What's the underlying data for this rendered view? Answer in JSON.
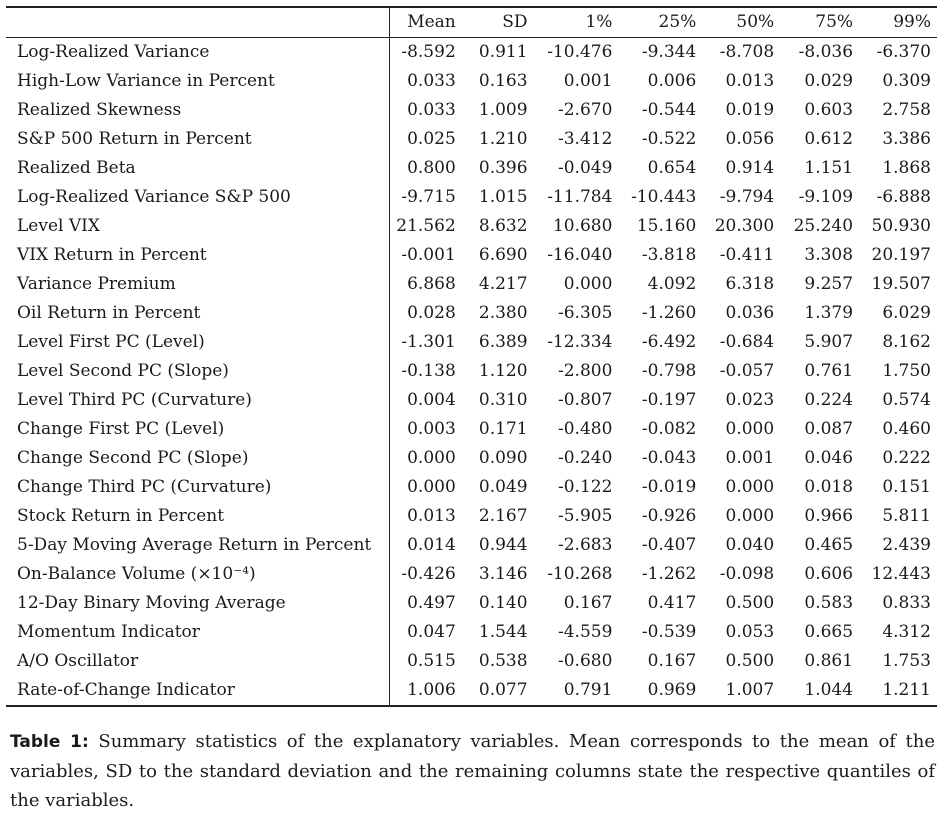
{
  "table": {
    "columns": [
      "Mean",
      "SD",
      "1%",
      "25%",
      "50%",
      "75%",
      "99%"
    ],
    "rows": [
      {
        "label": "Log-Realized Variance",
        "values": [
          "-8.592",
          "0.911",
          "-10.476",
          "-9.344",
          "-8.708",
          "-8.036",
          "-6.370"
        ]
      },
      {
        "label": "High-Low Variance in Percent",
        "values": [
          "0.033",
          "0.163",
          "0.001",
          "0.006",
          "0.013",
          "0.029",
          "0.309"
        ]
      },
      {
        "label": "Realized Skewness",
        "values": [
          "0.033",
          "1.009",
          "-2.670",
          "-0.544",
          "0.019",
          "0.603",
          "2.758"
        ]
      },
      {
        "label": "S&P 500 Return in Percent",
        "values": [
          "0.025",
          "1.210",
          "-3.412",
          "-0.522",
          "0.056",
          "0.612",
          "3.386"
        ]
      },
      {
        "label": "Realized Beta",
        "values": [
          "0.800",
          "0.396",
          "-0.049",
          "0.654",
          "0.914",
          "1.151",
          "1.868"
        ]
      },
      {
        "label": "Log-Realized Variance S&P 500",
        "values": [
          "-9.715",
          "1.015",
          "-11.784",
          "-10.443",
          "-9.794",
          "-9.109",
          "-6.888"
        ]
      },
      {
        "label": "Level VIX",
        "values": [
          "21.562",
          "8.632",
          "10.680",
          "15.160",
          "20.300",
          "25.240",
          "50.930"
        ]
      },
      {
        "label": "VIX Return in Percent",
        "values": [
          "-0.001",
          "6.690",
          "-16.040",
          "-3.818",
          "-0.411",
          "3.308",
          "20.197"
        ]
      },
      {
        "label": "Variance Premium",
        "values": [
          "6.868",
          "4.217",
          "0.000",
          "4.092",
          "6.318",
          "9.257",
          "19.507"
        ]
      },
      {
        "label": "Oil Return in Percent",
        "values": [
          "0.028",
          "2.380",
          "-6.305",
          "-1.260",
          "0.036",
          "1.379",
          "6.029"
        ]
      },
      {
        "label": "Level First PC (Level)",
        "values": [
          "-1.301",
          "6.389",
          "-12.334",
          "-6.492",
          "-0.684",
          "5.907",
          "8.162"
        ]
      },
      {
        "label": "Level Second PC (Slope)",
        "values": [
          "-0.138",
          "1.120",
          "-2.800",
          "-0.798",
          "-0.057",
          "0.761",
          "1.750"
        ]
      },
      {
        "label": "Level Third PC (Curvature)",
        "values": [
          "0.004",
          "0.310",
          "-0.807",
          "-0.197",
          "0.023",
          "0.224",
          "0.574"
        ]
      },
      {
        "label": "Change First PC (Level)",
        "values": [
          "0.003",
          "0.171",
          "-0.480",
          "-0.082",
          "0.000",
          "0.087",
          "0.460"
        ]
      },
      {
        "label": "Change Second PC (Slope)",
        "values": [
          "0.000",
          "0.090",
          "-0.240",
          "-0.043",
          "0.001",
          "0.046",
          "0.222"
        ]
      },
      {
        "label": "Change Third PC (Curvature)",
        "values": [
          "0.000",
          "0.049",
          "-0.122",
          "-0.019",
          "0.000",
          "0.018",
          "0.151"
        ]
      },
      {
        "label": "Stock Return in Percent",
        "values": [
          "0.013",
          "2.167",
          "-5.905",
          "-0.926",
          "0.000",
          "0.966",
          "5.811"
        ]
      },
      {
        "label": "5-Day Moving Average Return in Percent",
        "values": [
          "0.014",
          "0.944",
          "-2.683",
          "-0.407",
          "0.040",
          "0.465",
          "2.439"
        ]
      },
      {
        "label": "On-Balance Volume (×10⁻⁴)",
        "values": [
          "-0.426",
          "3.146",
          "-10.268",
          "-1.262",
          "-0.098",
          "0.606",
          "12.443"
        ]
      },
      {
        "label": "12-Day Binary Moving Average",
        "values": [
          "0.497",
          "0.140",
          "0.167",
          "0.417",
          "0.500",
          "0.583",
          "0.833"
        ]
      },
      {
        "label": "Momentum Indicator",
        "values": [
          "0.047",
          "1.544",
          "-4.559",
          "-0.539",
          "0.053",
          "0.665",
          "4.312"
        ]
      },
      {
        "label": "A/O Oscillator",
        "values": [
          "0.515",
          "0.538",
          "-0.680",
          "0.167",
          "0.500",
          "0.861",
          "1.753"
        ]
      },
      {
        "label": "Rate-of-Change Indicator",
        "values": [
          "1.006",
          "0.077",
          "0.791",
          "0.969",
          "1.007",
          "1.044",
          "1.211"
        ]
      }
    ]
  },
  "caption": {
    "label": "Table 1:",
    "text": "Summary statistics of the explanatory variables. Mean corresponds to the mean of the variables, SD to the standard deviation and the remaining columns state the respective quantiles of the variables."
  }
}
